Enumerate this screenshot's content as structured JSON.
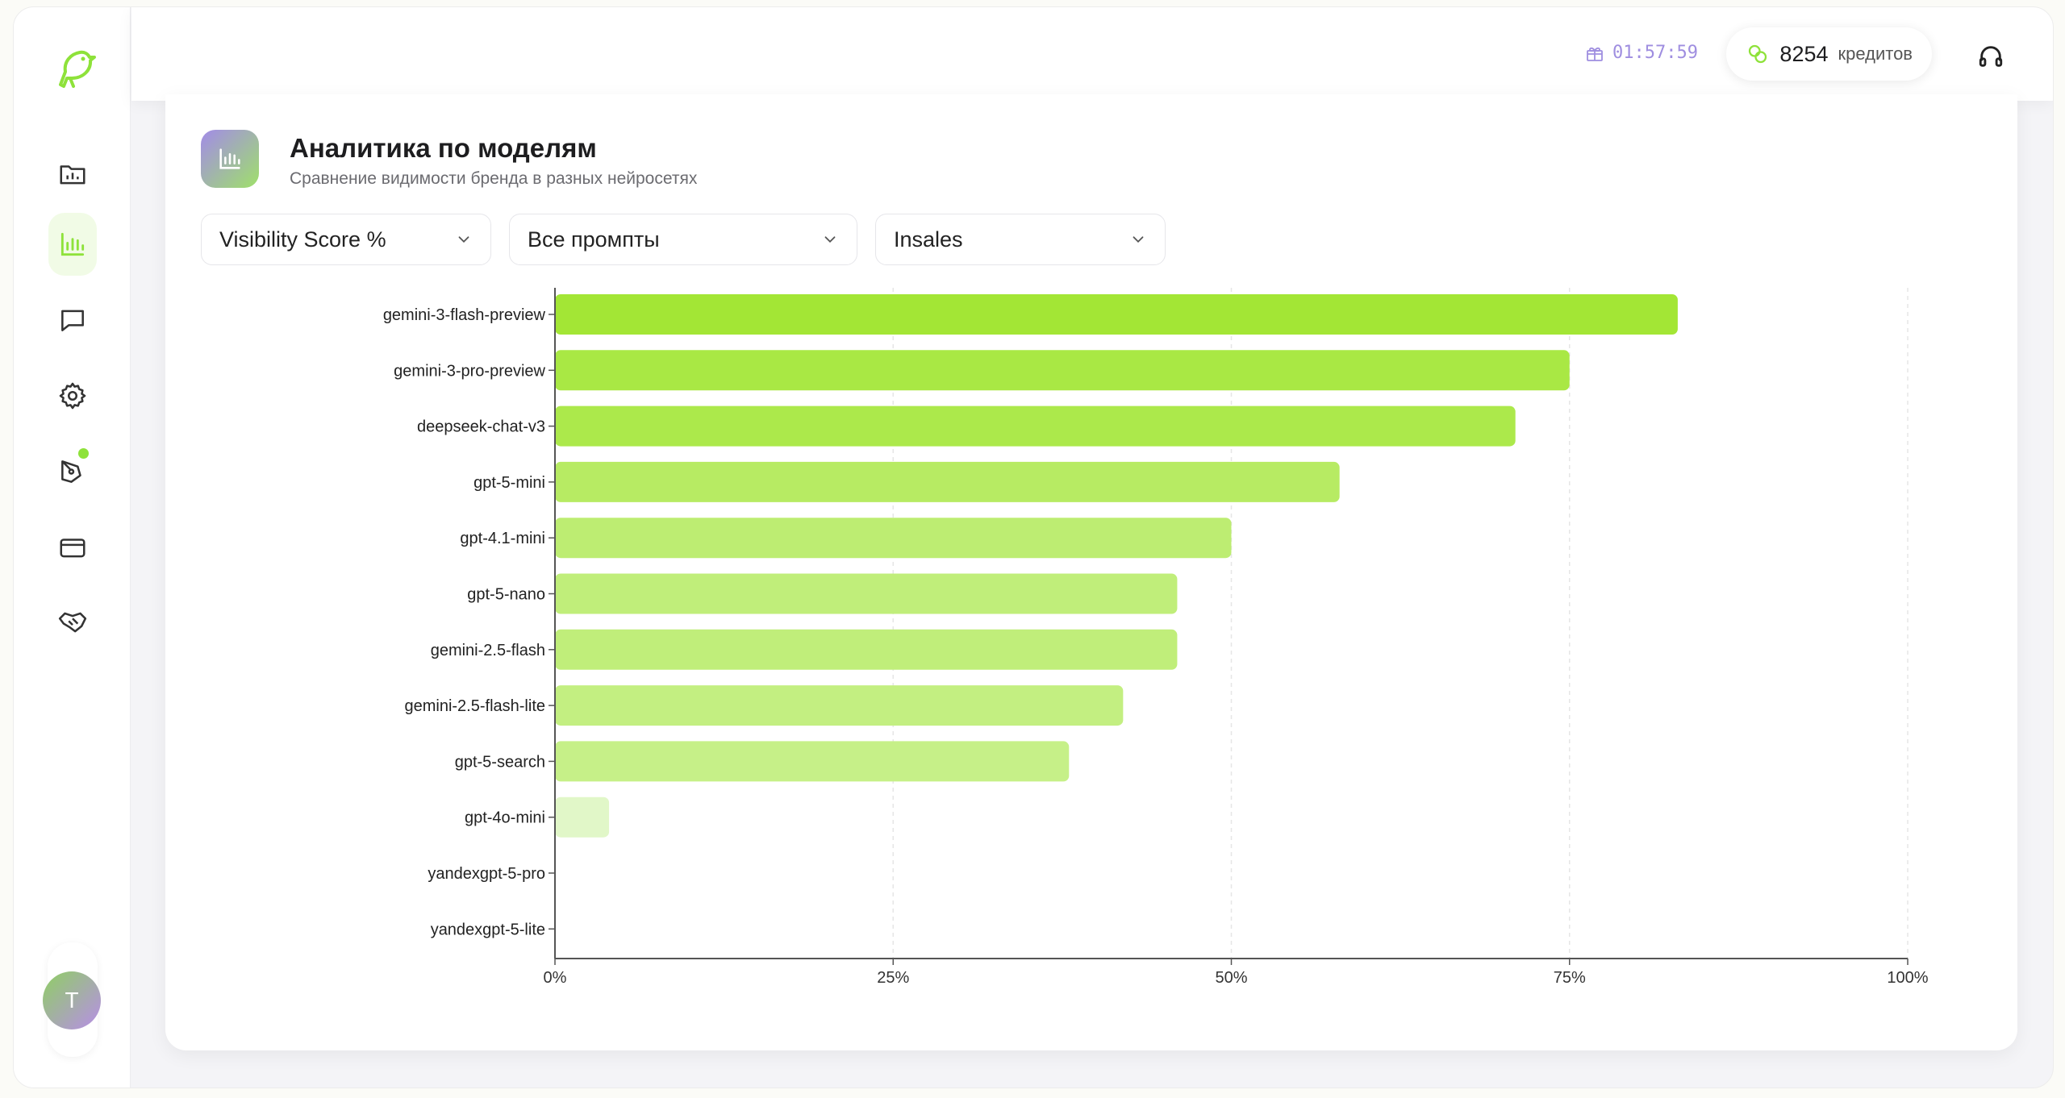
{
  "topbar": {
    "timer": "01:57:59",
    "credits_value": "8254",
    "credits_unit": "кредитов"
  },
  "sidebar": {
    "items": [
      {
        "name": "projects",
        "icon": "folder-chart-icon",
        "active": false
      },
      {
        "name": "analytics",
        "icon": "bar-chart-icon",
        "active": true
      },
      {
        "name": "chat",
        "icon": "message-icon",
        "active": false
      },
      {
        "name": "settings",
        "icon": "gear-icon",
        "active": false
      },
      {
        "name": "content",
        "icon": "pen-tool-icon",
        "active": false,
        "badge": true
      },
      {
        "name": "billing",
        "icon": "credit-card-icon",
        "active": false
      },
      {
        "name": "partners",
        "icon": "handshake-icon",
        "active": false
      }
    ],
    "avatar_letter": "T"
  },
  "card": {
    "title": "Аналитика по моделям",
    "subtitle": "Сравнение видимости бренда в разных нейросетях",
    "filters": {
      "metric": "Visibility Score %",
      "prompts": "Все промпты",
      "brand": "Insales"
    }
  },
  "colors": {
    "accent": "#8ee23a",
    "bar_max": "#a3e635",
    "bar_min": "#e4f8cf"
  },
  "chart_data": {
    "type": "bar",
    "orientation": "horizontal",
    "categories": [
      "gemini-3-flash-preview",
      "gemini-3-pro-preview",
      "deepseek-chat-v3",
      "gpt-5-mini",
      "gpt-4.1-mini",
      "gpt-5-nano",
      "gemini-2.5-flash",
      "gemini-2.5-flash-lite",
      "gpt-5-search",
      "gpt-4o-mini",
      "yandexgpt-5-pro",
      "yandexgpt-5-lite"
    ],
    "values": [
      83,
      75,
      71,
      58,
      50,
      46,
      46,
      42,
      38,
      4,
      0,
      0
    ],
    "xlim": [
      0,
      100
    ],
    "xticks": [
      "0%",
      "25%",
      "50%",
      "75%",
      "100%"
    ],
    "grid": true
  }
}
